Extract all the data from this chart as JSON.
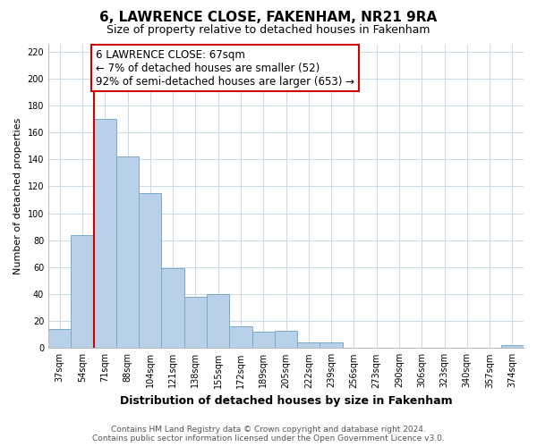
{
  "title": "6, LAWRENCE CLOSE, FAKENHAM, NR21 9RA",
  "subtitle": "Size of property relative to detached houses in Fakenham",
  "xlabel": "Distribution of detached houses by size in Fakenham",
  "ylabel": "Number of detached properties",
  "categories": [
    "37sqm",
    "54sqm",
    "71sqm",
    "88sqm",
    "104sqm",
    "121sqm",
    "138sqm",
    "155sqm",
    "172sqm",
    "189sqm",
    "205sqm",
    "222sqm",
    "239sqm",
    "256sqm",
    "273sqm",
    "290sqm",
    "306sqm",
    "323sqm",
    "340sqm",
    "357sqm",
    "374sqm"
  ],
  "values": [
    14,
    84,
    170,
    142,
    115,
    59,
    38,
    40,
    16,
    12,
    13,
    4,
    4,
    0,
    0,
    0,
    0,
    0,
    0,
    0,
    2
  ],
  "bar_color": "#b8d0e8",
  "bar_edge_color": "#7aaac8",
  "vline_x_index": 2,
  "vline_color": "#cc0000",
  "ylim": [
    0,
    225
  ],
  "yticks": [
    0,
    20,
    40,
    60,
    80,
    100,
    120,
    140,
    160,
    180,
    200,
    220
  ],
  "annotation_line1": "6 LAWRENCE CLOSE: 67sqm",
  "annotation_line2": "← 7% of detached houses are smaller (52)",
  "annotation_line3": "92% of semi-detached houses are larger (653) →",
  "footer_line1": "Contains HM Land Registry data © Crown copyright and database right 2024.",
  "footer_line2": "Contains public sector information licensed under the Open Government Licence v3.0.",
  "background_color": "#ffffff",
  "grid_color": "#ccdde8",
  "title_fontsize": 11,
  "subtitle_fontsize": 9,
  "xlabel_fontsize": 9,
  "ylabel_fontsize": 8,
  "tick_fontsize": 7,
  "footer_fontsize": 6.5,
  "annotation_fontsize": 8.5
}
